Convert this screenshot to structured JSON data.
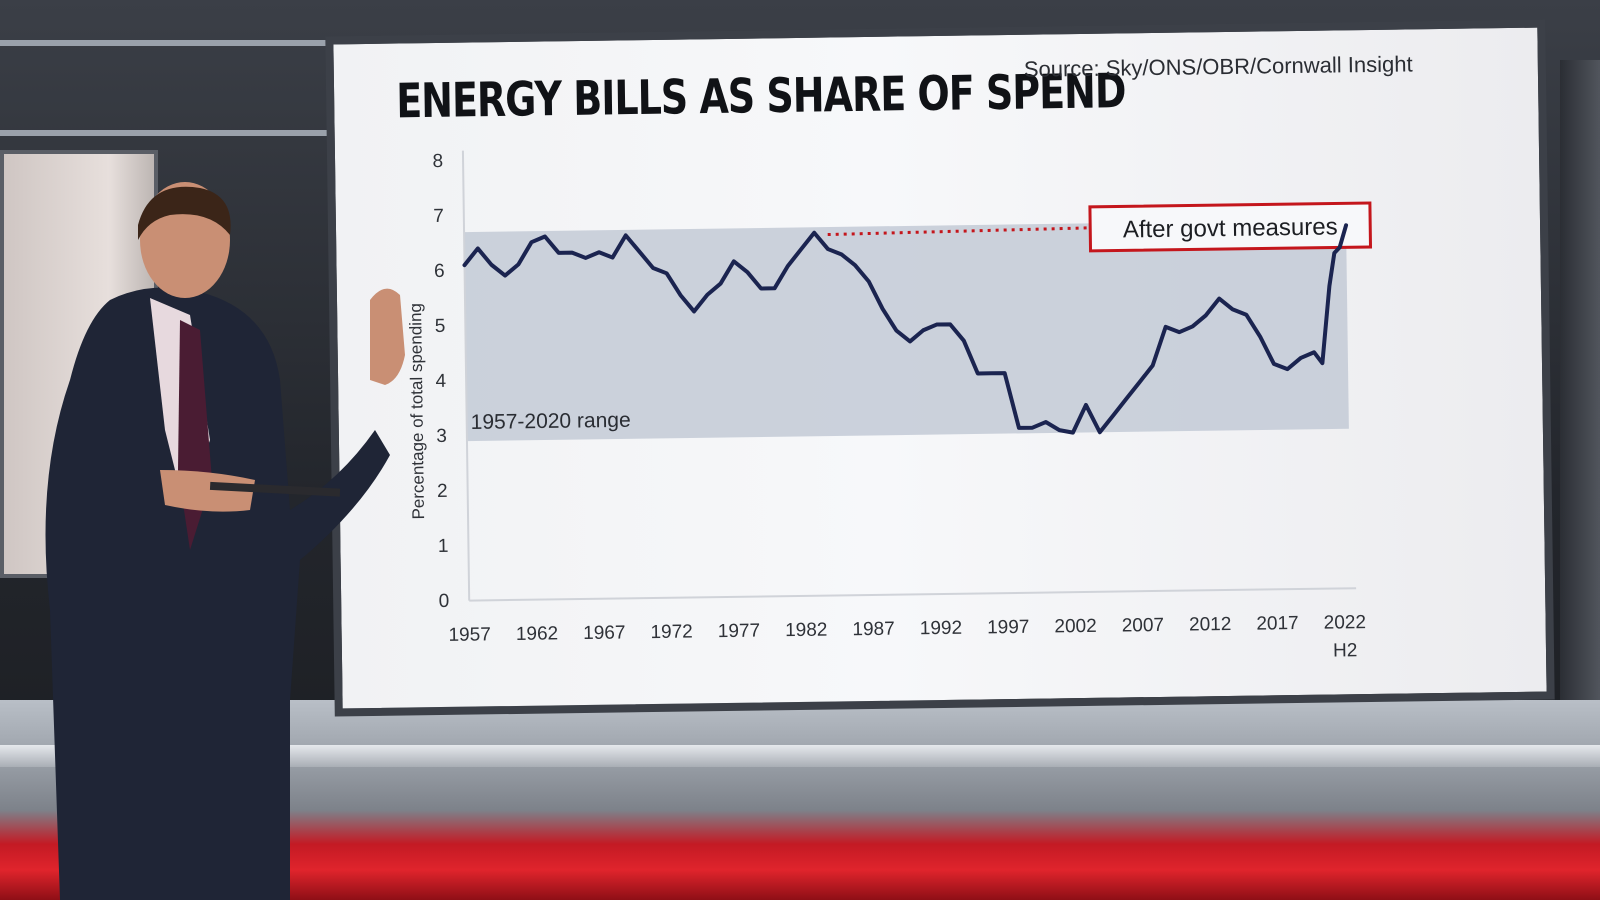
{
  "chart_data": {
    "type": "line",
    "title": "ENERGY BILLS AS SHARE OF SPEND",
    "source": "Source: Sky/ONS/OBR/Cornwall Insight",
    "ylabel": "Percentage of total spending",
    "xlabel": "",
    "ylim": [
      0,
      8
    ],
    "yticks": [
      "0",
      "1",
      "2",
      "3",
      "4",
      "5",
      "6",
      "7",
      "8"
    ],
    "xlim": [
      1957,
      2022.5
    ],
    "xticks": [
      {
        "value": 1957,
        "label": "1957"
      },
      {
        "value": 1962,
        "label": "1962"
      },
      {
        "value": 1967,
        "label": "1967"
      },
      {
        "value": 1972,
        "label": "1972"
      },
      {
        "value": 1977,
        "label": "1977"
      },
      {
        "value": 1982,
        "label": "1982"
      },
      {
        "value": 1987,
        "label": "1987"
      },
      {
        "value": 1992,
        "label": "1992"
      },
      {
        "value": 1997,
        "label": "1997"
      },
      {
        "value": 2002,
        "label": "2002"
      },
      {
        "value": 2007,
        "label": "2007"
      },
      {
        "value": 2012,
        "label": "2012"
      },
      {
        "value": 2017,
        "label": "2017"
      },
      {
        "value": 2022,
        "label": "2022"
      }
    ],
    "xtick_sublabel": "H2",
    "range_band": {
      "label": "1957-2020 range",
      "low": 2.9,
      "high": 6.7
    },
    "annotation": {
      "label": "After govt measures",
      "y": 6.6
    },
    "grid": false,
    "legend": "none",
    "series": [
      {
        "color": "#1b2450",
        "points": [
          [
            1957,
            6.1
          ],
          [
            1958,
            6.4
          ],
          [
            1959,
            6.1
          ],
          [
            1960,
            5.9
          ],
          [
            1961,
            6.1
          ],
          [
            1962,
            6.5
          ],
          [
            1963,
            6.6
          ],
          [
            1964,
            6.3
          ],
          [
            1965,
            6.3
          ],
          [
            1966,
            6.2
          ],
          [
            1967,
            6.3
          ],
          [
            1968,
            6.2
          ],
          [
            1969,
            6.6
          ],
          [
            1970,
            6.3
          ],
          [
            1971,
            6.0
          ],
          [
            1972,
            5.9
          ],
          [
            1973,
            5.5
          ],
          [
            1974,
            5.2
          ],
          [
            1975,
            5.5
          ],
          [
            1976,
            5.7
          ],
          [
            1977,
            6.1
          ],
          [
            1978,
            5.9
          ],
          [
            1979,
            5.6
          ],
          [
            1980,
            5.6
          ],
          [
            1981,
            6.0
          ],
          [
            1982,
            6.3
          ],
          [
            1983,
            6.6
          ],
          [
            1984,
            6.3
          ],
          [
            1985,
            6.2
          ],
          [
            1986,
            6.0
          ],
          [
            1987,
            5.7
          ],
          [
            1988,
            5.2
          ],
          [
            1989,
            4.8
          ],
          [
            1990,
            4.6
          ],
          [
            1991,
            4.8
          ],
          [
            1992,
            4.9
          ],
          [
            1993,
            4.9
          ],
          [
            1994,
            4.6
          ],
          [
            1995,
            4.0
          ],
          [
            1996,
            4.0
          ],
          [
            1997,
            4.0
          ],
          [
            1998,
            3.0
          ],
          [
            1999,
            3.0
          ],
          [
            2000,
            3.1
          ],
          [
            2001,
            2.95
          ],
          [
            2002,
            2.9
          ],
          [
            2003,
            3.4
          ],
          [
            2004,
            2.9
          ],
          [
            2005,
            3.2
          ],
          [
            2006,
            3.5
          ],
          [
            2007,
            3.8
          ],
          [
            2008,
            4.1
          ],
          [
            2009,
            4.8
          ],
          [
            2010,
            4.7
          ],
          [
            2011,
            4.8
          ],
          [
            2012,
            5.0
          ],
          [
            2013,
            5.3
          ],
          [
            2014,
            5.1
          ],
          [
            2015,
            5.0
          ],
          [
            2016,
            4.6
          ],
          [
            2017,
            4.1
          ],
          [
            2018,
            4.0
          ],
          [
            2019,
            4.2
          ],
          [
            2020,
            4.3
          ],
          [
            2020.6,
            4.1
          ],
          [
            2021.2,
            5.5
          ],
          [
            2021.6,
            6.1
          ],
          [
            2022,
            6.2
          ],
          [
            2022.5,
            6.6
          ]
        ]
      }
    ]
  }
}
